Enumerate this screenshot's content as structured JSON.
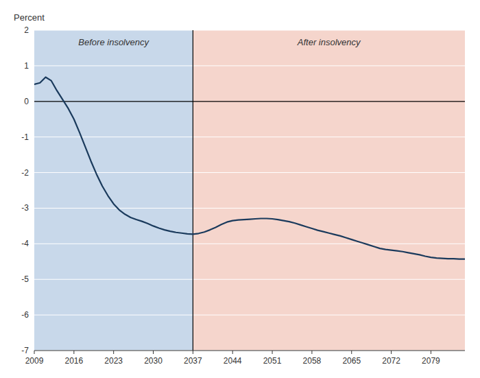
{
  "chart_data": {
    "type": "line",
    "y_label": "Percent",
    "x": [
      2009,
      2010,
      2011,
      2012,
      2013,
      2014,
      2015,
      2016,
      2017,
      2018,
      2019,
      2020,
      2021,
      2022,
      2023,
      2024,
      2025,
      2026,
      2027,
      2028,
      2029,
      2030,
      2031,
      2032,
      2033,
      2034,
      2035,
      2036,
      2037,
      2038,
      2039,
      2040,
      2041,
      2042,
      2043,
      2044,
      2045,
      2046,
      2047,
      2048,
      2049,
      2050,
      2051,
      2052,
      2053,
      2054,
      2055,
      2056,
      2057,
      2058,
      2059,
      2060,
      2061,
      2062,
      2063,
      2064,
      2065,
      2066,
      2067,
      2068,
      2069,
      2070,
      2071,
      2072,
      2073,
      2074,
      2075,
      2076,
      2077,
      2078,
      2079,
      2080,
      2081,
      2082,
      2083,
      2084,
      2085
    ],
    "values": [
      0.48,
      0.52,
      0.68,
      0.58,
      0.3,
      0.05,
      -0.2,
      -0.5,
      -0.88,
      -1.28,
      -1.68,
      -2.05,
      -2.38,
      -2.65,
      -2.88,
      -3.05,
      -3.17,
      -3.26,
      -3.32,
      -3.37,
      -3.43,
      -3.5,
      -3.56,
      -3.61,
      -3.65,
      -3.68,
      -3.7,
      -3.72,
      -3.73,
      -3.71,
      -3.67,
      -3.61,
      -3.54,
      -3.46,
      -3.39,
      -3.35,
      -3.33,
      -3.32,
      -3.31,
      -3.3,
      -3.29,
      -3.29,
      -3.3,
      -3.32,
      -3.35,
      -3.38,
      -3.42,
      -3.47,
      -3.52,
      -3.57,
      -3.62,
      -3.66,
      -3.7,
      -3.74,
      -3.78,
      -3.83,
      -3.88,
      -3.93,
      -3.98,
      -4.03,
      -4.08,
      -4.13,
      -4.16,
      -4.18,
      -4.2,
      -4.22,
      -4.25,
      -4.28,
      -4.31,
      -4.35,
      -4.38,
      -4.4,
      -4.41,
      -4.42,
      -4.42,
      -4.43,
      -4.43
    ],
    "color": "#1a3a5c",
    "xlim": [
      2009,
      2085
    ],
    "ylim": [
      -7,
      2
    ],
    "xticks": [
      2009,
      2016,
      2023,
      2030,
      2037,
      2044,
      2051,
      2058,
      2065,
      2072,
      2079
    ],
    "yticks": [
      -7,
      -6,
      -5,
      -4,
      -3,
      -2,
      -1,
      0,
      1,
      2
    ],
    "grid": true,
    "regions": [
      {
        "label": "Before insolvency",
        "from": 2009,
        "to": 2037,
        "color": "#c8d8ea"
      },
      {
        "label": "After insolvency",
        "from": 2037,
        "to": 2085,
        "color": "#f5d5cc"
      }
    ]
  }
}
